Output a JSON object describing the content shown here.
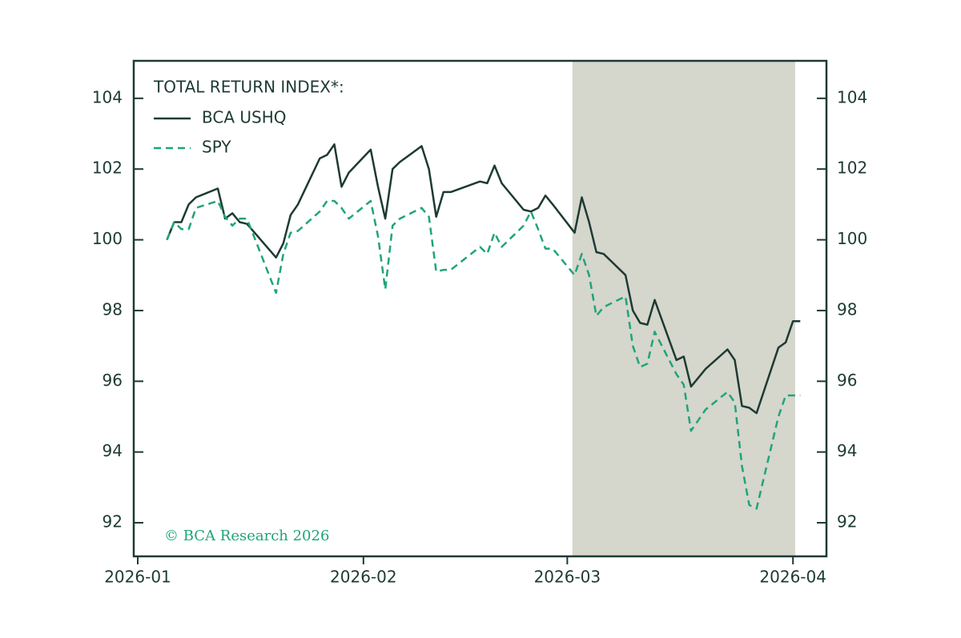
{
  "chart_data": {
    "type": "line",
    "legend_title": "TOTAL RETURN INDEX*:",
    "watermark": "© BCA Research 2026",
    "x": [
      4,
      5,
      6,
      7,
      8,
      11,
      12,
      13,
      14,
      15,
      19,
      20,
      21,
      22,
      25,
      26,
      27,
      28,
      29,
      32,
      33,
      34,
      35,
      36,
      39,
      40,
      41,
      42,
      43,
      47,
      48,
      49,
      50,
      53,
      54,
      55,
      56,
      57,
      60,
      61,
      62,
      63,
      64,
      67,
      68,
      69,
      70,
      71,
      74,
      75,
      76,
      77,
      78,
      81,
      82,
      83,
      84,
      85,
      88,
      89,
      90,
      91
    ],
    "series": [
      {
        "name": "BCA USHQ",
        "color": "#1d3a34",
        "dash": false,
        "values": [
          100.0,
          100.5,
          100.5,
          101.0,
          101.2,
          101.45,
          100.6,
          100.75,
          100.5,
          100.45,
          99.5,
          99.9,
          100.7,
          101.0,
          102.3,
          102.4,
          102.7,
          101.5,
          101.9,
          102.55,
          101.5,
          100.6,
          102.0,
          102.2,
          102.65,
          102.0,
          100.65,
          101.35,
          101.35,
          101.65,
          101.6,
          102.1,
          101.6,
          100.85,
          100.8,
          100.9,
          101.25,
          101.0,
          100.2,
          101.2,
          100.5,
          99.65,
          99.6,
          99.0,
          98.0,
          97.65,
          97.6,
          98.3,
          96.6,
          96.7,
          95.85,
          96.1,
          96.35,
          96.9,
          96.6,
          95.3,
          95.25,
          95.1,
          96.95,
          97.1,
          97.7,
          97.7
        ]
      },
      {
        "name": "SPY",
        "color": "#1fa47a",
        "dash": true,
        "values": [
          100.0,
          100.5,
          100.3,
          100.3,
          100.9,
          101.1,
          100.65,
          100.4,
          100.6,
          100.6,
          98.5,
          99.6,
          100.2,
          100.25,
          100.8,
          101.1,
          101.1,
          100.9,
          100.6,
          101.1,
          100.1,
          98.6,
          100.4,
          100.6,
          100.9,
          100.65,
          99.1,
          99.15,
          99.15,
          99.8,
          99.6,
          100.2,
          99.8,
          100.4,
          100.8,
          100.3,
          99.75,
          99.75,
          99.0,
          99.6,
          99.0,
          97.85,
          98.1,
          98.4,
          97.0,
          96.4,
          96.5,
          97.4,
          96.2,
          95.9,
          94.6,
          94.9,
          95.2,
          95.7,
          95.4,
          93.6,
          92.5,
          92.4,
          95.0,
          95.6,
          95.6,
          95.6
        ]
      }
    ],
    "xlim": [
      -0.55,
      94.6
    ],
    "xticks": [
      {
        "value": 0,
        "label": "2026-01"
      },
      {
        "value": 31,
        "label": "2026-02"
      },
      {
        "value": 59,
        "label": "2026-03"
      },
      {
        "value": 90,
        "label": "2026-04"
      }
    ],
    "ylim": [
      91.05,
      105.06
    ],
    "yticks": [
      92,
      94,
      96,
      98,
      100,
      102,
      104
    ],
    "shaded_range": [
      59.7,
      90.3
    ],
    "shade_color": "#d5d6cc",
    "grid": false,
    "legend": "upper left"
  }
}
